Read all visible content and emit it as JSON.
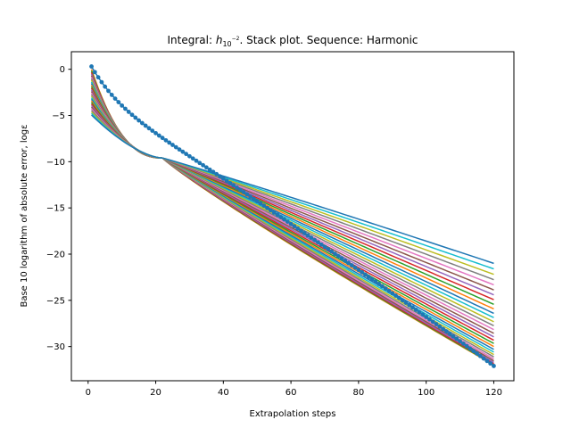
{
  "chart_data": {
    "type": "line",
    "title_parts": {
      "prefix": "Integral: ",
      "h": "h",
      "sub": "10",
      "sup": "−2",
      "suffix": ". Stack plot. Sequence: Harmonic"
    },
    "xlabel": "Extrapolation steps",
    "ylabel": "Base 10 logarithm of absolute error, logε",
    "xlim": [
      -4.95,
      125.95
    ],
    "ylim": [
      -33.7,
      1.9
    ],
    "xticks": [
      0,
      20,
      40,
      60,
      80,
      100,
      120
    ],
    "yticks": [
      0,
      -5,
      -10,
      -15,
      -20,
      -25,
      -30
    ],
    "xtick_labels": [
      "0",
      "20",
      "40",
      "60",
      "80",
      "100",
      "120"
    ],
    "ytick_labels": [
      "0",
      "−5",
      "−10",
      "−15",
      "−20",
      "−25",
      "−30"
    ],
    "grid": false,
    "legend": "none",
    "series_start_x": 1,
    "series_end_x": 120,
    "base_series": {
      "marker": "circle",
      "color": "#1f77b4",
      "start_y": 0.3,
      "end_y": -32.1
    },
    "stack_series": {
      "count": 30,
      "start_y_range": [
        0.0,
        -4.95
      ],
      "end_y_range": [
        -32.0,
        -21.0
      ],
      "crossover_x": 22,
      "crossover_y": -9.6,
      "colors": [
        "#ff7f0e",
        "#2ca02c",
        "#d62728",
        "#9467bd",
        "#8c564b",
        "#e377c2",
        "#7f7f7f",
        "#bcbd22",
        "#17becf",
        "#1f77b4"
      ]
    }
  }
}
